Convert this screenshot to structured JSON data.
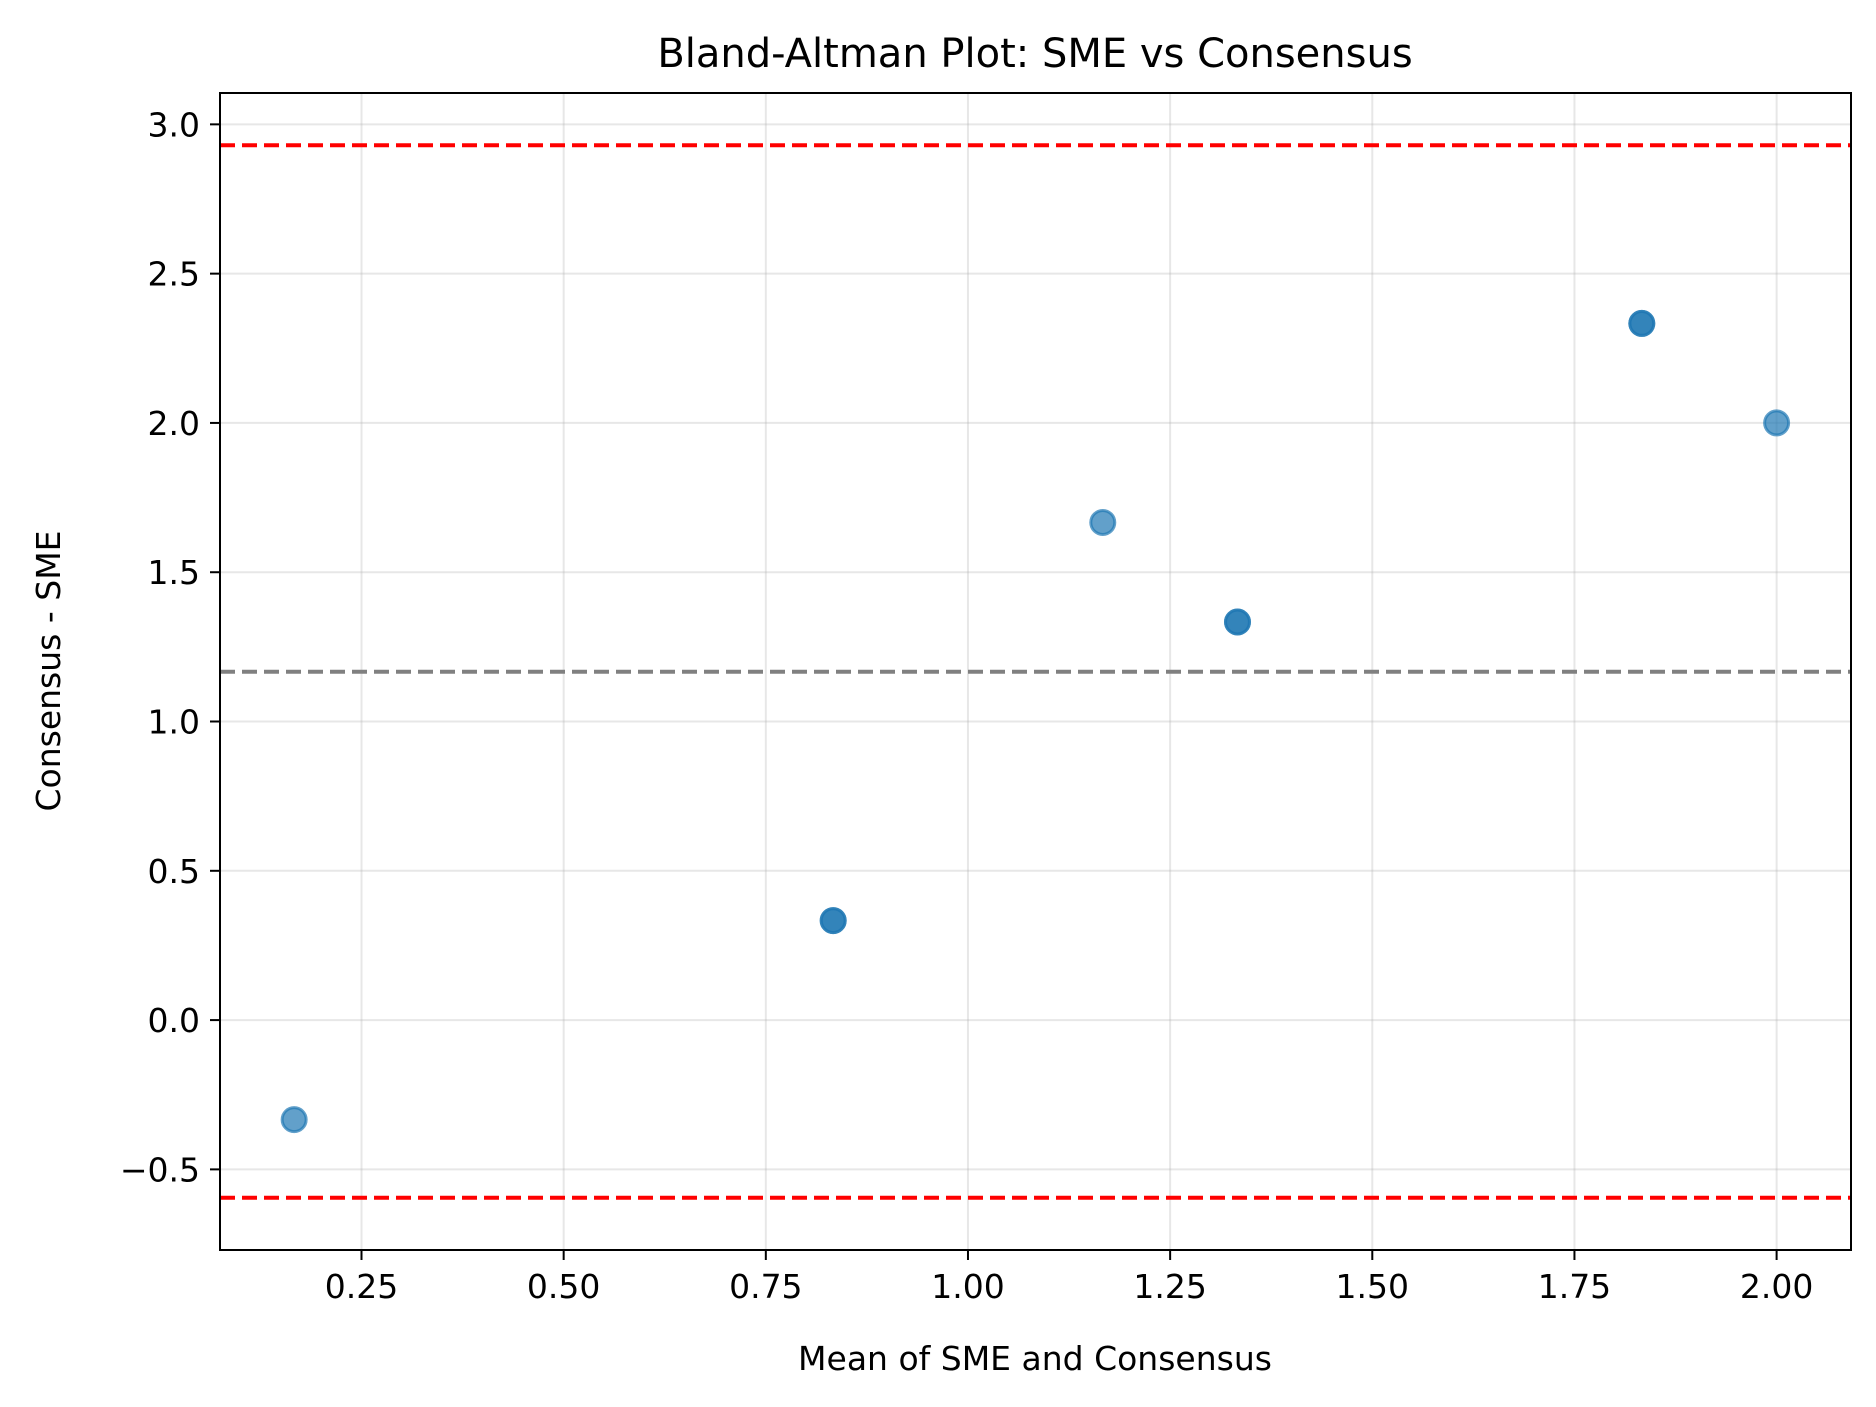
{
  "chart_data": {
    "type": "scatter",
    "title": "Bland-Altman Plot: SME vs Consensus",
    "xlabel": "Mean of SME and Consensus",
    "ylabel": "Consensus - SME",
    "xlim": [
      0.075,
      2.092
    ],
    "ylim": [
      -0.77,
      3.105
    ],
    "xticks": [
      0.25,
      0.5,
      0.75,
      1.0,
      1.25,
      1.5,
      1.75,
      2.0
    ],
    "xtick_labels": [
      "0.25",
      "0.50",
      "0.75",
      "1.00",
      "1.25",
      "1.50",
      "1.75",
      "2.00"
    ],
    "yticks": [
      -0.5,
      0.0,
      0.5,
      1.0,
      1.5,
      2.0,
      2.5,
      3.0
    ],
    "ytick_labels": [
      "−0.5",
      "0.0",
      "0.5",
      "1.0",
      "1.5",
      "2.0",
      "2.5",
      "3.0"
    ],
    "grid": true,
    "points": [
      {
        "x": 0.1667,
        "y": -0.3333
      },
      {
        "x": 0.8333,
        "y": 0.3333
      },
      {
        "x": 0.8333,
        "y": 0.3333
      },
      {
        "x": 1.1667,
        "y": 1.6667
      },
      {
        "x": 1.3333,
        "y": 1.3333
      },
      {
        "x": 1.3333,
        "y": 1.3333
      },
      {
        "x": 1.8333,
        "y": 2.3333
      },
      {
        "x": 1.8333,
        "y": 2.3333
      },
      {
        "x": 2.0,
        "y": 2.0
      }
    ],
    "reference_lines": [
      {
        "name": "mean-difference",
        "y": 1.1667,
        "color": "#808080",
        "style": "dashed"
      },
      {
        "name": "upper-limit",
        "y": 2.93,
        "color": "#ff0000",
        "style": "dashed"
      },
      {
        "name": "lower-limit",
        "y": -0.595,
        "color": "#ff0000",
        "style": "dashed"
      }
    ],
    "point_color": "#1f77b4",
    "point_alpha": 0.7
  }
}
